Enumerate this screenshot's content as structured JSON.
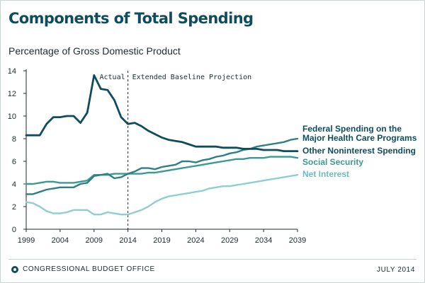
{
  "page": {
    "title": "Components of Total Spending",
    "subtitle": "Percentage of Gross Domestic Product"
  },
  "footer": {
    "agency": "CONGRESSIONAL BUDGET OFFICE",
    "date": "JULY 2014"
  },
  "chart_data": {
    "type": "line",
    "title": "Components of Total Spending",
    "subtitle": "Percentage of Gross Domestic Product",
    "xlim": [
      1999,
      2039
    ],
    "ylim": [
      0,
      14
    ],
    "xticks": [
      "1999",
      "2004",
      "2009",
      "2014",
      "2019",
      "2024",
      "2029",
      "2034",
      "2039"
    ],
    "yticks": [
      "0",
      "2",
      "4",
      "6",
      "8",
      "10",
      "12",
      "14"
    ],
    "grid": false,
    "divider": {
      "x": 2014,
      "left_label": "Actual",
      "right_label": "Extended Baseline Projection"
    },
    "series": [
      {
        "name": "Federal Spending on the Major Health Care Programs",
        "label_lines": [
          "Federal Spending on the",
          "Major Health Care Programs"
        ],
        "color": "#2e7f86",
        "x": [
          1999,
          2000,
          2001,
          2002,
          2003,
          2004,
          2005,
          2006,
          2007,
          2008,
          2009,
          2010,
          2011,
          2012,
          2013,
          2014,
          2015,
          2016,
          2017,
          2018,
          2019,
          2020,
          2021,
          2022,
          2023,
          2024,
          2025,
          2026,
          2027,
          2028,
          2029,
          2030,
          2031,
          2032,
          2033,
          2034,
          2035,
          2036,
          2037,
          2038,
          2039
        ],
        "y": [
          3.1,
          3.1,
          3.3,
          3.5,
          3.6,
          3.7,
          3.7,
          3.7,
          4.0,
          4.1,
          4.7,
          4.8,
          4.9,
          4.5,
          4.6,
          4.9,
          5.1,
          5.4,
          5.4,
          5.3,
          5.5,
          5.6,
          5.7,
          6.0,
          6.0,
          5.9,
          6.1,
          6.2,
          6.4,
          6.5,
          6.7,
          6.8,
          7.0,
          7.1,
          7.3,
          7.4,
          7.5,
          7.6,
          7.7,
          7.9,
          8.0
        ]
      },
      {
        "name": "Other Noninterest Spending",
        "label_lines": [
          "Other Noninterest Spending"
        ],
        "color": "#0f4c5c",
        "x": [
          1999,
          2000,
          2001,
          2002,
          2003,
          2004,
          2005,
          2006,
          2007,
          2008,
          2009,
          2010,
          2011,
          2012,
          2013,
          2014,
          2015,
          2016,
          2017,
          2018,
          2019,
          2020,
          2021,
          2022,
          2023,
          2024,
          2025,
          2026,
          2027,
          2028,
          2029,
          2030,
          2031,
          2032,
          2033,
          2034,
          2035,
          2036,
          2037,
          2038,
          2039
        ],
        "y": [
          8.3,
          8.3,
          8.3,
          9.3,
          9.9,
          9.9,
          10.0,
          10.0,
          9.4,
          10.3,
          13.6,
          12.4,
          12.3,
          11.4,
          9.9,
          9.3,
          9.4,
          9.1,
          8.7,
          8.4,
          8.1,
          7.9,
          7.8,
          7.7,
          7.5,
          7.3,
          7.3,
          7.3,
          7.3,
          7.2,
          7.2,
          7.2,
          7.1,
          7.1,
          7.1,
          7.0,
          7.0,
          7.0,
          6.9,
          6.9,
          6.9
        ]
      },
      {
        "name": "Social Security",
        "label_lines": [
          "Social Security"
        ],
        "color": "#3a9a93",
        "x": [
          1999,
          2000,
          2001,
          2002,
          2003,
          2004,
          2005,
          2006,
          2007,
          2008,
          2009,
          2010,
          2011,
          2012,
          2013,
          2014,
          2015,
          2016,
          2017,
          2018,
          2019,
          2020,
          2021,
          2022,
          2023,
          2024,
          2025,
          2026,
          2027,
          2028,
          2029,
          2030,
          2031,
          2032,
          2033,
          2034,
          2035,
          2036,
          2037,
          2038,
          2039
        ],
        "y": [
          4.0,
          4.0,
          4.1,
          4.2,
          4.2,
          4.1,
          4.1,
          4.1,
          4.2,
          4.3,
          4.8,
          4.8,
          4.8,
          4.9,
          4.9,
          4.9,
          4.9,
          4.9,
          5.0,
          5.0,
          5.1,
          5.2,
          5.3,
          5.4,
          5.5,
          5.6,
          5.7,
          5.8,
          5.9,
          6.0,
          6.1,
          6.2,
          6.2,
          6.3,
          6.3,
          6.3,
          6.4,
          6.4,
          6.4,
          6.4,
          6.3
        ]
      },
      {
        "name": "Net Interest",
        "label_lines": [
          "Net Interest"
        ],
        "color": "#8fcfcf",
        "x": [
          1999,
          2000,
          2001,
          2002,
          2003,
          2004,
          2005,
          2006,
          2007,
          2008,
          2009,
          2010,
          2011,
          2012,
          2013,
          2014,
          2015,
          2016,
          2017,
          2018,
          2019,
          2020,
          2021,
          2022,
          2023,
          2024,
          2025,
          2026,
          2027,
          2028,
          2029,
          2030,
          2031,
          2032,
          2033,
          2034,
          2035,
          2036,
          2037,
          2038,
          2039
        ],
        "y": [
          2.4,
          2.3,
          2.0,
          1.6,
          1.4,
          1.4,
          1.5,
          1.7,
          1.7,
          1.7,
          1.3,
          1.3,
          1.5,
          1.4,
          1.3,
          1.3,
          1.5,
          1.7,
          2.0,
          2.4,
          2.7,
          2.9,
          3.0,
          3.1,
          3.2,
          3.3,
          3.4,
          3.6,
          3.7,
          3.8,
          3.8,
          3.9,
          4.0,
          4.1,
          4.2,
          4.3,
          4.4,
          4.5,
          4.6,
          4.7,
          4.8
        ]
      }
    ]
  }
}
